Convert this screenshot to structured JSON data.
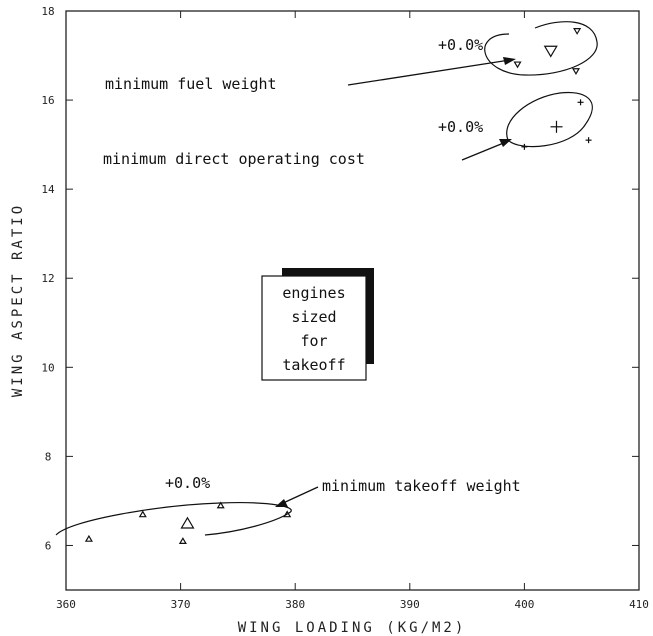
{
  "chart_data": {
    "type": "scatter",
    "xlabel": "WING LOADING   (KG/M2)",
    "ylabel": "WING ASPECT RATIO",
    "xlim": [
      360,
      410
    ],
    "ylim": [
      5,
      18
    ],
    "xticks": [
      360,
      370,
      380,
      390,
      400,
      410
    ],
    "yticks": [
      6,
      8,
      10,
      12,
      14,
      16,
      18
    ],
    "xtick_labels": [
      "360",
      "370",
      "380",
      "390",
      "400",
      "410"
    ],
    "ytick_labels": [
      "6",
      "8",
      "10",
      "12",
      "14",
      "16",
      "18"
    ],
    "grid": false,
    "series": [
      {
        "marker": "triangle-down",
        "optimum": {
          "x": 402.3,
          "y": 17.1
        },
        "contour_points": [
          {
            "x": 404.6,
            "y": 17.55
          },
          {
            "x": 404.5,
            "y": 16.65
          },
          {
            "x": 399.4,
            "y": 16.8
          }
        ],
        "contour_label": "+0.0%"
      },
      {
        "marker": "plus",
        "optimum": {
          "x": 402.8,
          "y": 15.4
        },
        "contour_points": [
          {
            "x": 404.9,
            "y": 15.95
          },
          {
            "x": 405.6,
            "y": 15.1
          },
          {
            "x": 400.0,
            "y": 14.95
          }
        ],
        "contour_label": "+0.0%"
      },
      {
        "marker": "triangle-up",
        "optimum": {
          "x": 370.6,
          "y": 6.5
        },
        "contour_points": [
          {
            "x": 362.0,
            "y": 6.15
          },
          {
            "x": 366.7,
            "y": 6.7
          },
          {
            "x": 373.5,
            "y": 6.9
          },
          {
            "x": 379.3,
            "y": 6.7
          },
          {
            "x": 370.2,
            "y": 6.1
          }
        ],
        "contour_label": "+0.0%"
      }
    ],
    "annotations": [
      {
        "text": "minimum fuel weight"
      },
      {
        "text": "minimum direct operating cost"
      },
      {
        "text": "minimum takeoff weight"
      }
    ],
    "boxed_note": [
      "engines",
      "sized",
      "for",
      "takeoff"
    ]
  }
}
